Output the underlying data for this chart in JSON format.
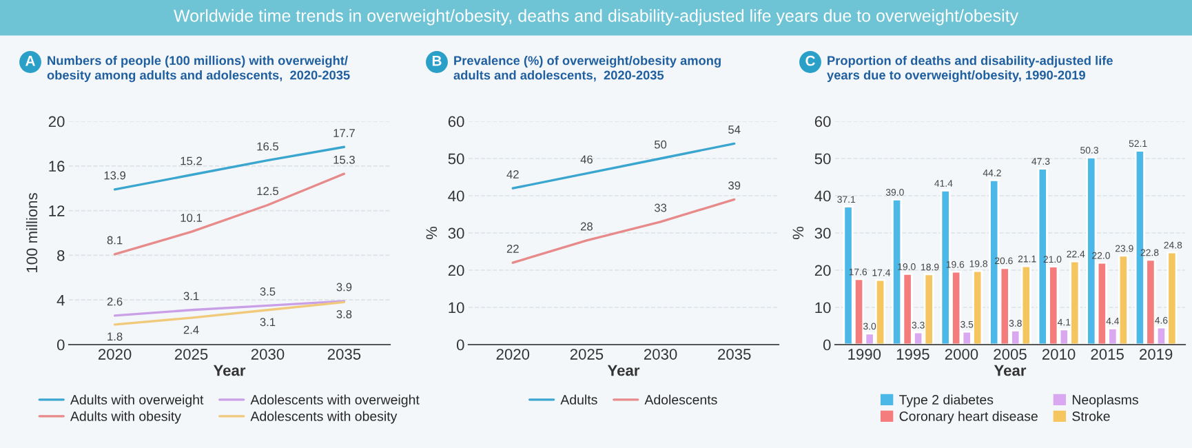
{
  "chart_data": [
    {
      "type": "line",
      "title": "Numbers of people (100 millions) with overweight/\nobesity among adults and adolescents,  2020-2035",
      "annotations": [
        "Worldwide time trends in overweight/obesity, deaths and disability-adjusted life years due to overweight/obesity",
        "A"
      ],
      "xlabel": "Year",
      "ylabel": "100 millions",
      "categories": [
        "2020",
        "2025",
        "2030",
        "2035"
      ],
      "ylim": [
        0,
        20
      ],
      "yticks": [
        0,
        4,
        8,
        12,
        16,
        20
      ],
      "grid": "y",
      "legend": "bottom",
      "data_labels": true,
      "series": [
        {
          "name": "Adults with overweight",
          "color": "#3aa6d0",
          "values": [
            13.9,
            15.2,
            16.5,
            17.7
          ]
        },
        {
          "name": "Adults with obesity",
          "color": "#e8898a",
          "values": [
            8.1,
            10.1,
            12.5,
            15.3
          ]
        },
        {
          "name": "Adolescents with overweight",
          "color": "#c9a0e8",
          "values": [
            2.6,
            3.1,
            3.5,
            3.9
          ]
        },
        {
          "name": "Adolescents with obesity",
          "color": "#f1c97a",
          "values": [
            1.8,
            2.4,
            3.1,
            3.8
          ]
        }
      ]
    },
    {
      "type": "line",
      "title": "Prevalence (%) of overweight/obesity among\nadults and adolescents,  2020-2035",
      "annotations": [
        "B"
      ],
      "xlabel": "Year",
      "ylabel": "%",
      "categories": [
        "2020",
        "2025",
        "2030",
        "2035"
      ],
      "ylim": [
        0,
        60
      ],
      "yticks": [
        0,
        10,
        20,
        30,
        40,
        50,
        60
      ],
      "grid": "y",
      "legend": "bottom",
      "data_labels": true,
      "series": [
        {
          "name": "Adults",
          "color": "#3aa6d0",
          "values": [
            42,
            46,
            50,
            54
          ]
        },
        {
          "name": "Adolescents",
          "color": "#e8898a",
          "values": [
            22,
            28,
            33,
            39
          ]
        }
      ]
    },
    {
      "type": "bar",
      "title": "Proportion of deaths and disability-adjusted life\nyears due to overweight/obesity, 1990-2019",
      "annotations": [
        "C"
      ],
      "xlabel": "Year",
      "ylabel": "%",
      "categories": [
        "1990",
        "1995",
        "2000",
        "2005",
        "2010",
        "2015",
        "2019"
      ],
      "ylim": [
        0,
        60
      ],
      "yticks": [
        0,
        10,
        20,
        30,
        40,
        50,
        60
      ],
      "grid": "y",
      "legend": "bottom",
      "series": [
        {
          "name": "Type 2 diabetes",
          "color": "#4cb8e8",
          "values": [
            37.1,
            39.0,
            41.4,
            44.2,
            47.3,
            50.3,
            52.1
          ],
          "value_labels": [
            "37.1",
            "39.0",
            "41.4",
            "44.2",
            "47.3",
            "50.3",
            "52.1"
          ]
        },
        {
          "name": "Coronary heart disease",
          "color": "#f47c7c",
          "values": [
            17.6,
            19.0,
            19.6,
            20.6,
            21.0,
            22.0,
            22.8
          ],
          "value_labels": [
            "17.6",
            "19.0",
            "19.6",
            "20.6",
            "21.0",
            "22.0",
            "22.8"
          ]
        },
        {
          "name": "Neoplasms",
          "color": "#d9a8f0",
          "values": [
            3.0,
            3.3,
            3.5,
            3.8,
            4.1,
            4.4,
            4.6
          ],
          "value_labels": [
            "3.0",
            "3.3",
            "3.5",
            "3.8",
            "4.1",
            "4.4",
            "4.6"
          ]
        },
        {
          "name": "Stroke",
          "color": "#f5c560",
          "values": [
            17.4,
            18.9,
            19.8,
            21.1,
            22.4,
            23.9,
            24.8
          ],
          "value_labels": [
            "17.4",
            "18.9",
            "19.8",
            "21.1",
            "22.4",
            "23.9",
            "24.8"
          ]
        }
      ]
    }
  ]
}
